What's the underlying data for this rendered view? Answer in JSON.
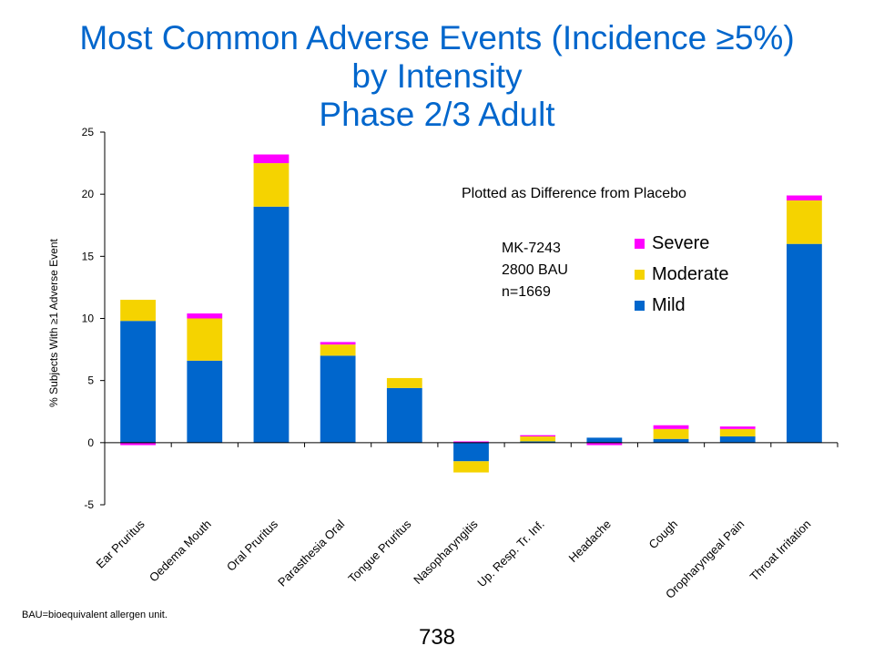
{
  "slide": {
    "title_lines": [
      "Most Common Adverse Events (Incidence ≥5%)",
      "by Intensity",
      "Phase 2/3 Adult"
    ],
    "note": "Plotted as Difference from Placebo",
    "product_lines": [
      "MK-7243",
      "2800 BAU",
      "n=1669"
    ],
    "footnote": "BAU=bioequivalent  allergen unit.",
    "page_number": "738"
  },
  "chart_data": {
    "type": "bar",
    "stacked": true,
    "title": "",
    "xlabel": "",
    "ylabel": "% Subjects With ≥1 Adverse Event",
    "ylim": [
      -5,
      25
    ],
    "yticks": [
      -5,
      0,
      5,
      10,
      15,
      20,
      25
    ],
    "legend_position": "right",
    "categories": [
      "Ear Pruritus",
      "Oedema Mouth",
      "Oral Pruritus",
      "Parasthesia Oral",
      "Tongue Pruritus",
      "Nasopharyngitis",
      "Up. Resp. Tr. Inf.",
      "Headache",
      "Cough",
      "Oropharyngeal Pain",
      "Throat Irritation"
    ],
    "series": [
      {
        "name": "Mild",
        "color": "#0066CC",
        "values": [
          9.8,
          6.6,
          19.0,
          7.0,
          4.4,
          -1.5,
          0.1,
          0.4,
          0.3,
          0.5,
          16.0
        ]
      },
      {
        "name": "Moderate",
        "color": "#F5D300",
        "values": [
          1.7,
          3.4,
          3.5,
          0.9,
          0.8,
          -0.9,
          0.4,
          0.0,
          0.8,
          0.6,
          3.5
        ]
      },
      {
        "name": "Severe",
        "color": "#FF00FF",
        "values": [
          -0.2,
          0.4,
          0.7,
          0.2,
          0.0,
          0.1,
          0.1,
          -0.2,
          0.3,
          0.2,
          0.4
        ]
      }
    ],
    "legend_order": [
      "Severe",
      "Moderate",
      "Mild"
    ]
  }
}
